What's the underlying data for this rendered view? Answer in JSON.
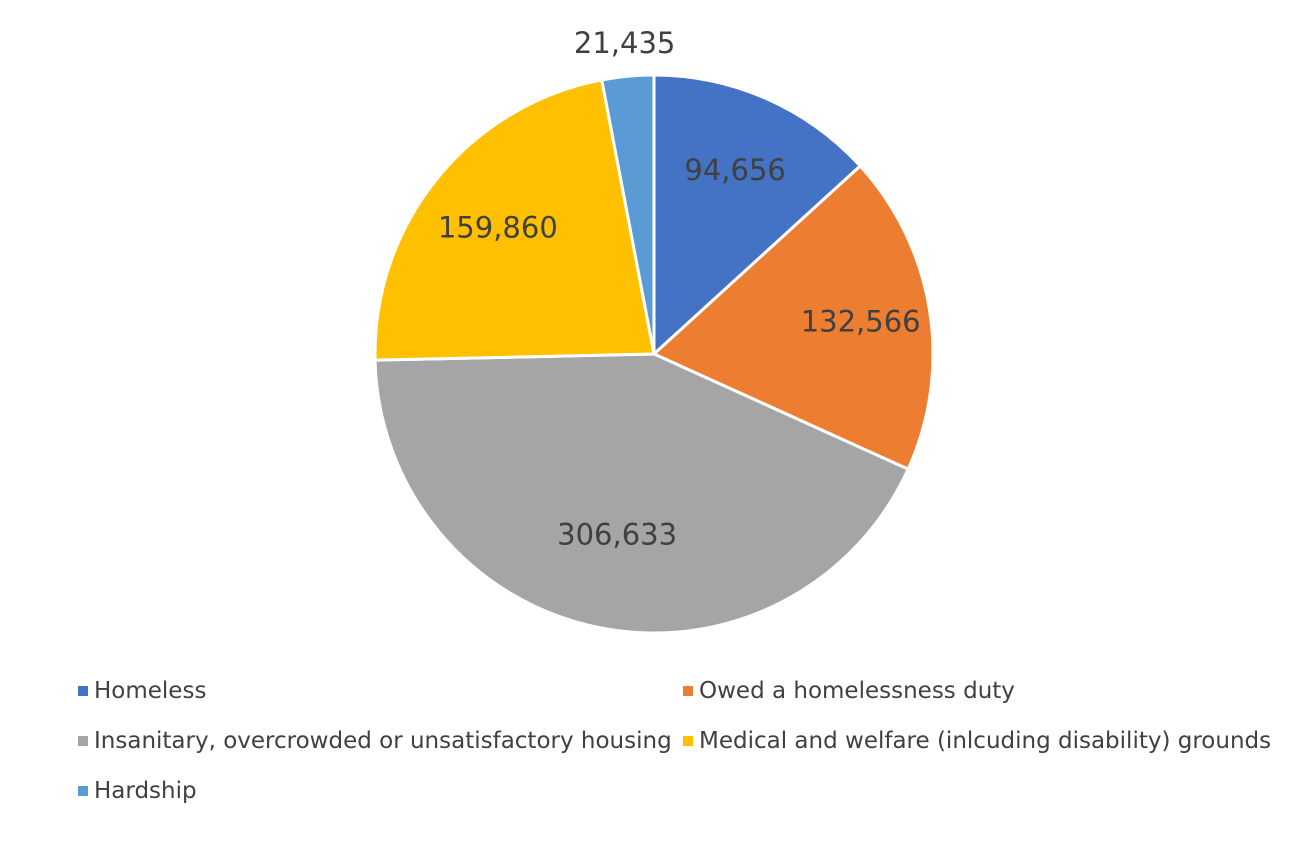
{
  "chart_data": {
    "type": "pie",
    "title": "",
    "start_angle_deg": 0,
    "direction": "clockwise",
    "slices": [
      {
        "label": "Homeless",
        "value": 94656,
        "display": "94,656",
        "color": "#4472C4"
      },
      {
        "label": "Owed a homelessness duty",
        "value": 132566,
        "display": "132,566",
        "color": "#ED7D31"
      },
      {
        "label": "Insanitary, overcrowded or unsatisfactory housing",
        "value": 306633,
        "display": "306,633",
        "color": "#A5A5A5"
      },
      {
        "label": "Medical and welfare (inlcuding disability) grounds",
        "value": 159860,
        "display": "159,860",
        "color": "#FFC000"
      },
      {
        "label": "Hardship",
        "value": 21435,
        "display": "21,435",
        "color": "#5B9BD5"
      }
    ],
    "legend_position": "bottom"
  }
}
